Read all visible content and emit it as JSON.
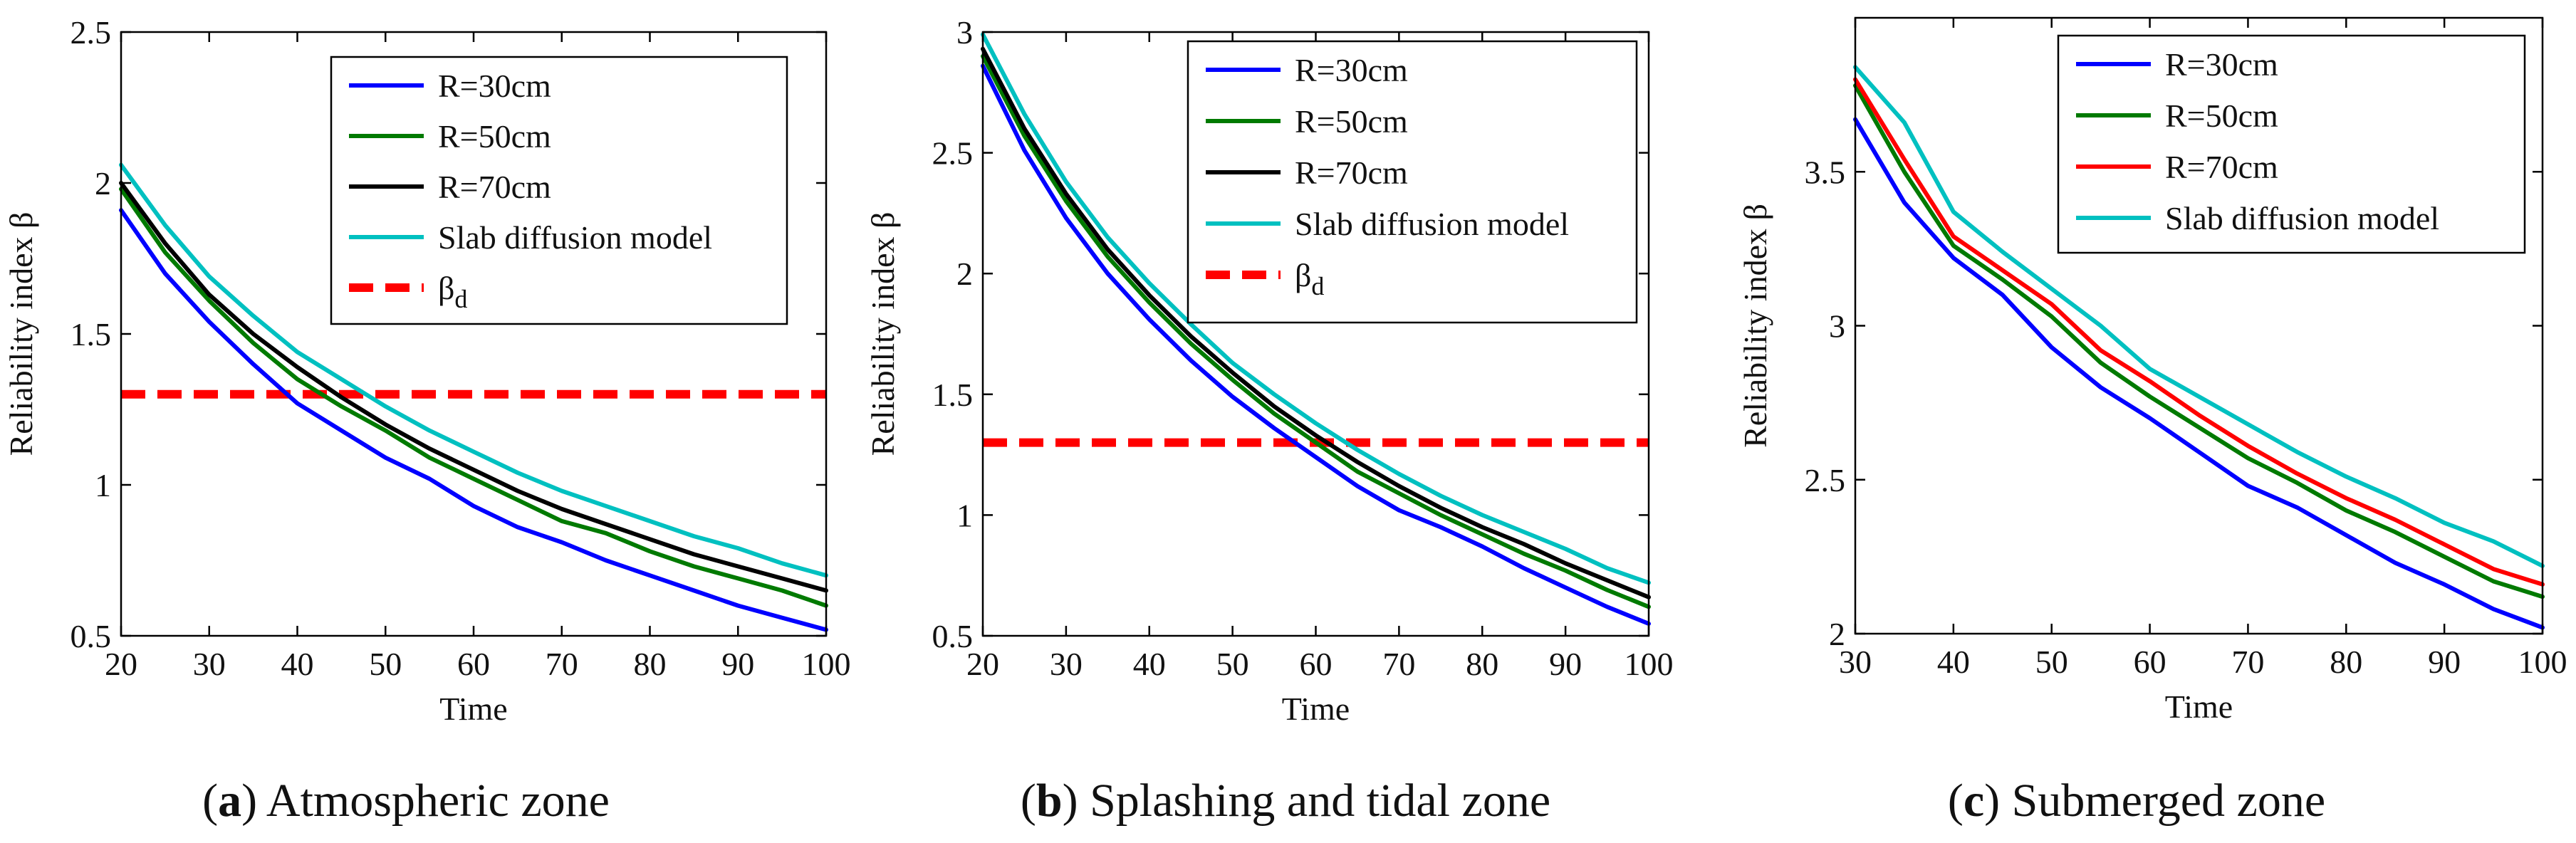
{
  "panels": [
    {
      "caption_letter": "a",
      "caption_text": "Atmospheric zone",
      "chart_data": {
        "type": "line",
        "title": "",
        "xlabel": "Time",
        "ylabel": "Reliability index β",
        "xlim": [
          20,
          100
        ],
        "ylim": [
          0.5,
          2.5
        ],
        "xticks": [
          "20",
          "30",
          "40",
          "50",
          "60",
          "70",
          "80",
          "90",
          "100"
        ],
        "yticks": [
          "0.5",
          "1",
          "1.5",
          "2",
          "2.5"
        ],
        "legend_position": "top-right",
        "x": [
          20,
          25,
          30,
          35,
          40,
          45,
          50,
          55,
          60,
          65,
          70,
          75,
          80,
          85,
          90,
          95,
          100
        ],
        "series": [
          {
            "name": "R=30cm",
            "color": "#0000ff",
            "values": [
              1.91,
              1.7,
              1.54,
              1.4,
              1.27,
              1.18,
              1.09,
              1.02,
              0.93,
              0.86,
              0.81,
              0.75,
              0.7,
              0.65,
              0.6,
              0.56,
              0.52
            ]
          },
          {
            "name": "R=50cm",
            "color": "#007a00",
            "values": [
              1.98,
              1.77,
              1.61,
              1.47,
              1.35,
              1.26,
              1.18,
              1.09,
              1.02,
              0.95,
              0.88,
              0.84,
              0.78,
              0.73,
              0.69,
              0.65,
              0.6
            ]
          },
          {
            "name": "R=70cm",
            "color": "#000000",
            "values": [
              2.0,
              1.8,
              1.63,
              1.5,
              1.39,
              1.29,
              1.2,
              1.12,
              1.05,
              0.98,
              0.92,
              0.87,
              0.82,
              0.77,
              0.73,
              0.69,
              0.65
            ]
          },
          {
            "name": "Slab diffusion model",
            "color": "#00c0c0",
            "values": [
              2.06,
              1.86,
              1.69,
              1.56,
              1.44,
              1.35,
              1.26,
              1.18,
              1.11,
              1.04,
              0.98,
              0.93,
              0.88,
              0.83,
              0.79,
              0.74,
              0.7
            ]
          }
        ],
        "threshold": {
          "name": "β",
          "subscript": "d",
          "color": "#ff0000",
          "value": 1.3
        }
      }
    },
    {
      "caption_letter": "b",
      "caption_text": "Splashing and tidal zone",
      "chart_data": {
        "type": "line",
        "title": "",
        "xlabel": "Time",
        "ylabel": "Reliability index β",
        "xlim": [
          20,
          100
        ],
        "ylim": [
          0.5,
          3
        ],
        "xticks": [
          "20",
          "30",
          "40",
          "50",
          "60",
          "70",
          "80",
          "90",
          "100"
        ],
        "yticks": [
          "0.5",
          "1",
          "1.5",
          "2",
          "2.5",
          "3"
        ],
        "legend_position": "top-right",
        "x": [
          20,
          25,
          30,
          35,
          40,
          45,
          50,
          55,
          60,
          65,
          70,
          75,
          80,
          85,
          90,
          95,
          100
        ],
        "series": [
          {
            "name": "R=30cm",
            "color": "#0000ff",
            "values": [
              2.86,
              2.51,
              2.23,
              2.0,
              1.81,
              1.64,
              1.49,
              1.36,
              1.24,
              1.12,
              1.02,
              0.95,
              0.87,
              0.78,
              0.7,
              0.62,
              0.55
            ]
          },
          {
            "name": "R=50cm",
            "color": "#007a00",
            "values": [
              2.9,
              2.57,
              2.3,
              2.07,
              1.88,
              1.71,
              1.56,
              1.42,
              1.3,
              1.18,
              1.09,
              1.0,
              0.92,
              0.84,
              0.77,
              0.69,
              0.62
            ]
          },
          {
            "name": "R=70cm",
            "color": "#000000",
            "values": [
              2.93,
              2.6,
              2.33,
              2.1,
              1.91,
              1.74,
              1.59,
              1.45,
              1.33,
              1.22,
              1.12,
              1.03,
              0.95,
              0.88,
              0.8,
              0.73,
              0.66
            ]
          },
          {
            "name": "Slab diffusion model",
            "color": "#00c0c0",
            "values": [
              2.99,
              2.66,
              2.38,
              2.15,
              1.96,
              1.79,
              1.63,
              1.5,
              1.38,
              1.27,
              1.17,
              1.08,
              1.0,
              0.93,
              0.86,
              0.78,
              0.72
            ]
          }
        ],
        "threshold": {
          "name": "β",
          "subscript": "d",
          "color": "#ff0000",
          "value": 1.3
        }
      }
    },
    {
      "caption_letter": "c",
      "caption_text": "Submerged zone",
      "chart_data": {
        "type": "line",
        "title": "",
        "xlabel": "Time",
        "ylabel": "Reliability index β",
        "xlim": [
          30,
          100
        ],
        "ylim": [
          2,
          4
        ],
        "xticks": [
          "30",
          "40",
          "50",
          "60",
          "70",
          "80",
          "90",
          "100"
        ],
        "yticks": [
          "2",
          "2.5",
          "3",
          "3.5"
        ],
        "legend_position": "top-right",
        "x": [
          30,
          35,
          40,
          45,
          50,
          55,
          60,
          65,
          70,
          75,
          80,
          85,
          90,
          95,
          100
        ],
        "series": [
          {
            "name": "R=30cm",
            "color": "#0000ff",
            "values": [
              3.67,
              3.4,
              3.22,
              3.1,
              2.93,
              2.8,
              2.7,
              2.59,
              2.48,
              2.41,
              2.32,
              2.23,
              2.16,
              2.08,
              2.02
            ]
          },
          {
            "name": "R=50cm",
            "color": "#007a00",
            "values": [
              3.78,
              3.5,
              3.26,
              3.15,
              3.03,
              2.88,
              2.77,
              2.67,
              2.57,
              2.49,
              2.4,
              2.33,
              2.25,
              2.17,
              2.12
            ]
          },
          {
            "name": "R=70cm",
            "color": "#ff0000",
            "values": [
              3.8,
              3.54,
              3.29,
              3.18,
              3.07,
              2.92,
              2.82,
              2.71,
              2.61,
              2.52,
              2.44,
              2.37,
              2.29,
              2.21,
              2.16
            ]
          },
          {
            "name": "Slab diffusion model",
            "color": "#00c0c0",
            "values": [
              3.84,
              3.66,
              3.37,
              3.24,
              3.12,
              3.0,
              2.86,
              2.77,
              2.68,
              2.59,
              2.51,
              2.44,
              2.36,
              2.3,
              2.22
            ]
          }
        ]
      }
    }
  ]
}
